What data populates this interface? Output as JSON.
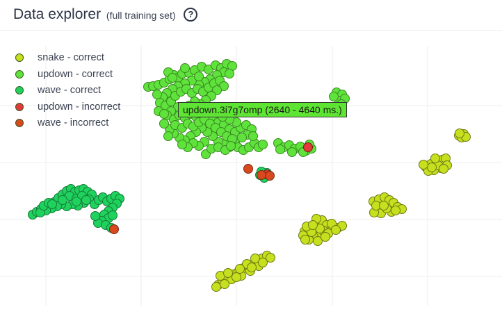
{
  "header": {
    "title": "Data explorer",
    "subtitle": "(full training set)",
    "help_icon": "help-circle-icon",
    "help_glyph": "?"
  },
  "legend": [
    {
      "label": "snake - correct",
      "color": "#c6df1f"
    },
    {
      "label": "updown - correct",
      "color": "#5fe33c"
    },
    {
      "label": "wave - correct",
      "color": "#1fd15d"
    },
    {
      "label": "updown - incorrect",
      "color": "#e23a3a"
    },
    {
      "label": "wave - incorrect",
      "color": "#d9481e"
    }
  ],
  "tooltip": {
    "text": "updown.3i7g7omp (2640 - 4640 ms.)"
  },
  "chart_data": {
    "type": "scatter",
    "grid": true,
    "legend_position": "top-left",
    "series": [
      {
        "name": "snake - correct",
        "color": "#c6df1f",
        "points": [
          [
            660,
            195
          ],
          [
            667,
            193
          ],
          [
            664,
            198
          ],
          [
            670,
            197
          ],
          [
            661,
            192
          ],
          [
            612,
            240
          ],
          [
            620,
            236
          ],
          [
            628,
            232
          ],
          [
            636,
            230
          ],
          [
            641,
            228
          ],
          [
            634,
            242
          ],
          [
            624,
            245
          ],
          [
            616,
            246
          ],
          [
            643,
            238
          ],
          [
            630,
            238
          ],
          [
            638,
            243
          ],
          [
            621,
            241
          ],
          [
            626,
            228
          ],
          [
            609,
            237
          ],
          [
            537,
            290
          ],
          [
            545,
            287
          ],
          [
            553,
            284
          ],
          [
            560,
            288
          ],
          [
            566,
            292
          ],
          [
            572,
            298
          ],
          [
            578,
            301
          ],
          [
            563,
            305
          ],
          [
            548,
            307
          ],
          [
            538,
            306
          ],
          [
            556,
            300
          ],
          [
            541,
            296
          ],
          [
            569,
            303
          ],
          [
            552,
            296
          ],
          [
            438,
            333
          ],
          [
            447,
            326
          ],
          [
            456,
            321
          ],
          [
            463,
            317
          ],
          [
            470,
            324
          ],
          [
            478,
            326
          ],
          [
            486,
            328
          ],
          [
            492,
            325
          ],
          [
            461,
            337
          ],
          [
            451,
            341
          ],
          [
            444,
            345
          ],
          [
            436,
            339
          ],
          [
            457,
            347
          ],
          [
            465,
            332
          ],
          [
            472,
            336
          ],
          [
            448,
            334
          ],
          [
            441,
            326
          ],
          [
            455,
            315
          ],
          [
            468,
            341
          ],
          [
            477,
            322
          ],
          [
            483,
            331
          ],
          [
            460,
            329
          ],
          [
            450,
            324
          ],
          [
            439,
            345
          ],
          [
            314,
            410
          ],
          [
            320,
            403
          ],
          [
            327,
            398
          ],
          [
            336,
            395
          ],
          [
            343,
            391
          ],
          [
            350,
            386
          ],
          [
            357,
            383
          ],
          [
            364,
            380
          ],
          [
            371,
            376
          ],
          [
            377,
            372
          ],
          [
            384,
            368
          ],
          [
            372,
            383
          ],
          [
            360,
            390
          ],
          [
            347,
            397
          ],
          [
            333,
            402
          ],
          [
            323,
            409
          ],
          [
            317,
            397
          ],
          [
            355,
            380
          ],
          [
            367,
            372
          ],
          [
            340,
            399
          ],
          [
            328,
            393
          ],
          [
            345,
            387
          ],
          [
            362,
            385
          ],
          [
            378,
            378
          ],
          [
            389,
            371
          ],
          [
            311,
            413
          ]
        ]
      },
      {
        "name": "updown - correct",
        "color": "#5fe33c",
        "points": [
          [
            213,
            125
          ],
          [
            220,
            124
          ],
          [
            228,
            122
          ],
          [
            236,
            119
          ],
          [
            244,
            114
          ],
          [
            250,
            108
          ],
          [
            242,
            104
          ],
          [
            256,
            112
          ],
          [
            262,
            106
          ],
          [
            272,
            105
          ],
          [
            280,
            101
          ],
          [
            290,
            96
          ],
          [
            300,
            100
          ],
          [
            310,
            94
          ],
          [
            318,
            98
          ],
          [
            326,
            92
          ],
          [
            334,
            95
          ],
          [
            322,
            104
          ],
          [
            312,
            108
          ],
          [
            302,
            114
          ],
          [
            294,
            118
          ],
          [
            286,
            122
          ],
          [
            276,
            116
          ],
          [
            266,
            120
          ],
          [
            256,
            124
          ],
          [
            248,
            128
          ],
          [
            240,
            134
          ],
          [
            234,
            140
          ],
          [
            230,
            148
          ],
          [
            238,
            152
          ],
          [
            246,
            146
          ],
          [
            252,
            138
          ],
          [
            260,
            132
          ],
          [
            268,
            128
          ],
          [
            276,
            134
          ],
          [
            284,
            128
          ],
          [
            292,
            132
          ],
          [
            300,
            126
          ],
          [
            308,
            120
          ],
          [
            316,
            116
          ],
          [
            322,
            124
          ],
          [
            312,
            130
          ],
          [
            304,
            138
          ],
          [
            296,
            144
          ],
          [
            288,
            150
          ],
          [
            280,
            146
          ],
          [
            272,
            152
          ],
          [
            264,
            158
          ],
          [
            256,
            154
          ],
          [
            246,
            160
          ],
          [
            240,
            166
          ],
          [
            250,
            172
          ],
          [
            258,
            166
          ],
          [
            266,
            170
          ],
          [
            274,
            164
          ],
          [
            282,
            168
          ],
          [
            290,
            162
          ],
          [
            298,
            166
          ],
          [
            306,
            170
          ],
          [
            314,
            176
          ],
          [
            322,
            180
          ],
          [
            330,
            186
          ],
          [
            338,
            190
          ],
          [
            346,
            184
          ],
          [
            354,
            180
          ],
          [
            362,
            186
          ],
          [
            356,
            194
          ],
          [
            348,
            198
          ],
          [
            338,
            206
          ],
          [
            330,
            212
          ],
          [
            322,
            208
          ],
          [
            314,
            204
          ],
          [
            306,
            196
          ],
          [
            298,
            190
          ],
          [
            290,
            184
          ],
          [
            282,
            190
          ],
          [
            274,
            196
          ],
          [
            266,
            202
          ],
          [
            258,
            198
          ],
          [
            250,
            192
          ],
          [
            244,
            186
          ],
          [
            252,
            180
          ],
          [
            262,
            184
          ],
          [
            270,
            178
          ],
          [
            278,
            182
          ],
          [
            286,
            176
          ],
          [
            294,
            172
          ],
          [
            302,
            178
          ],
          [
            310,
            184
          ],
          [
            318,
            190
          ],
          [
            326,
            196
          ],
          [
            334,
            200
          ],
          [
            342,
            212
          ],
          [
            350,
            216
          ],
          [
            358,
            212
          ],
          [
            366,
            206
          ],
          [
            372,
            212
          ],
          [
            378,
            208
          ],
          [
            364,
            196
          ],
          [
            340,
            176
          ],
          [
            330,
            172
          ],
          [
            320,
            168
          ],
          [
            294,
            204
          ],
          [
            286,
            210
          ],
          [
            278,
            206
          ],
          [
            270,
            212
          ],
          [
            262,
            208
          ],
          [
            296,
            222
          ],
          [
            304,
            214
          ],
          [
            314,
            212
          ],
          [
            324,
            216
          ],
          [
            332,
            210
          ],
          [
            236,
            178
          ],
          [
            242,
            196
          ],
          [
            228,
            160
          ],
          [
            236,
            164
          ],
          [
            248,
            112
          ],
          [
            330,
            106
          ],
          [
            286,
            110
          ],
          [
            266,
            98
          ],
          [
            226,
            136
          ],
          [
            484,
            133
          ],
          [
            492,
            136
          ],
          [
            488,
            145
          ],
          [
            496,
            142
          ],
          [
            480,
            139
          ],
          [
            491,
            150
          ],
          [
            400,
            206
          ],
          [
            408,
            212
          ],
          [
            416,
            209
          ],
          [
            424,
            214
          ],
          [
            432,
            211
          ],
          [
            440,
            217
          ],
          [
            448,
            214
          ],
          [
            403,
            215
          ],
          [
            420,
            219
          ],
          [
            436,
            219
          ],
          [
            445,
            208
          ]
        ]
      },
      {
        "name": "wave - correct",
        "color": "#1fd15d",
        "points": [
          [
            47,
            309
          ],
          [
            53,
            305
          ],
          [
            59,
            301
          ],
          [
            66,
            298
          ],
          [
            72,
            295
          ],
          [
            78,
            291
          ],
          [
            84,
            285
          ],
          [
            90,
            280
          ],
          [
            96,
            275
          ],
          [
            102,
            272
          ],
          [
            108,
            276
          ],
          [
            114,
            274
          ],
          [
            120,
            272
          ],
          [
            126,
            276
          ],
          [
            132,
            280
          ],
          [
            128,
            287
          ],
          [
            121,
            292
          ],
          [
            112,
            296
          ],
          [
            104,
            294
          ],
          [
            96,
            297
          ],
          [
            88,
            294
          ],
          [
            82,
            297
          ],
          [
            74,
            300
          ],
          [
            66,
            303
          ],
          [
            58,
            306
          ],
          [
            63,
            296
          ],
          [
            70,
            292
          ],
          [
            100,
            282
          ],
          [
            110,
            286
          ],
          [
            118,
            282
          ],
          [
            124,
            288
          ],
          [
            136,
            294
          ],
          [
            142,
            288
          ],
          [
            148,
            284
          ],
          [
            154,
            290
          ],
          [
            160,
            286
          ],
          [
            166,
            282
          ],
          [
            172,
            286
          ],
          [
            168,
            293
          ],
          [
            162,
            299
          ],
          [
            156,
            304
          ],
          [
            150,
            309
          ],
          [
            156,
            314
          ],
          [
            162,
            310
          ],
          [
            146,
            318
          ],
          [
            141,
            321
          ],
          [
            152,
            324
          ],
          [
            160,
            328
          ],
          [
            137,
            311
          ],
          [
            110,
            290
          ],
          [
            90,
            288
          ],
          [
            75,
            294
          ],
          [
            374,
            252
          ],
          [
            380,
            256
          ],
          [
            384,
            249
          ],
          [
            376,
            247
          ]
        ]
      },
      {
        "name": "updown - incorrect",
        "color": "#e23a3a",
        "points": [
          [
            443,
            212
          ],
          [
            384,
            251
          ]
        ]
      },
      {
        "name": "wave - incorrect",
        "color": "#d9481e",
        "points": [
          [
            164,
            330
          ],
          [
            357,
            243
          ],
          [
            376,
            252
          ],
          [
            388,
            253
          ]
        ]
      }
    ]
  }
}
